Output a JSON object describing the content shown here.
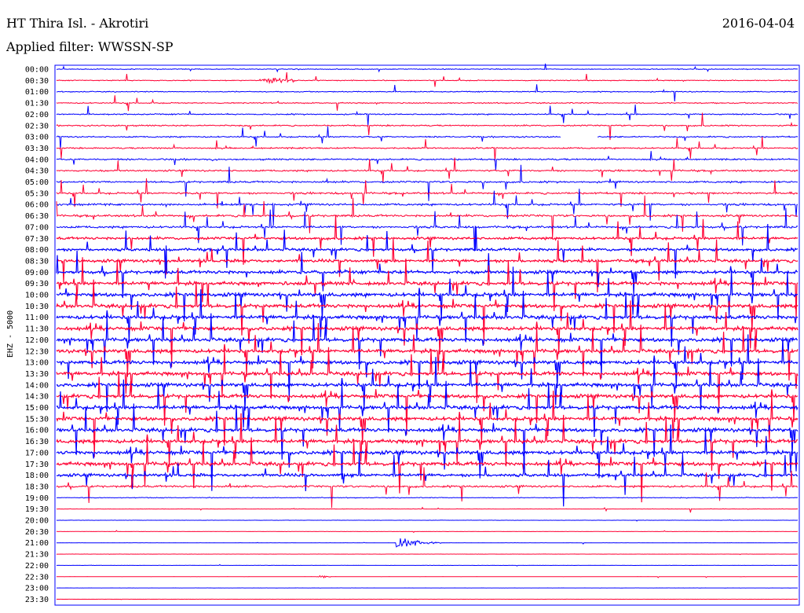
{
  "header": {
    "station": "HT Thira Isl. - Akrotiri",
    "date": "2016-04-04",
    "filter": "Applied filter: WWSSN-SP"
  },
  "colors": {
    "line_a": "#0000ff",
    "line_b": "#ff0033",
    "frame": "#0000ff"
  },
  "chart_data": {
    "type": "line",
    "subtype": "helicorder",
    "ylabel": "EHZ - 5000",
    "xlabel": "",
    "grid": false,
    "row_interval_minutes": 30,
    "rows": [
      {
        "time": "00:00",
        "color": "blue",
        "activity": 0.35
      },
      {
        "time": "00:30",
        "color": "red",
        "activity": 0.4,
        "event": "small local event"
      },
      {
        "time": "01:00",
        "color": "blue",
        "activity": 0.45
      },
      {
        "time": "01:30",
        "color": "red",
        "activity": 0.5
      },
      {
        "time": "02:00",
        "color": "blue",
        "activity": 0.55
      },
      {
        "time": "02:30",
        "color": "red",
        "activity": 0.6
      },
      {
        "time": "03:00",
        "color": "blue",
        "activity": 0.6,
        "gap": true
      },
      {
        "time": "03:30",
        "color": "red",
        "activity": 0.65
      },
      {
        "time": "04:00",
        "color": "blue",
        "activity": 0.7
      },
      {
        "time": "04:30",
        "color": "red",
        "activity": 0.75
      },
      {
        "time": "05:00",
        "color": "blue",
        "activity": 0.8
      },
      {
        "time": "05:30",
        "color": "red",
        "activity": 0.85
      },
      {
        "time": "06:00",
        "color": "blue",
        "activity": 0.9
      },
      {
        "time": "06:30",
        "color": "red",
        "activity": 0.95
      },
      {
        "time": "07:00",
        "color": "blue",
        "activity": 1.0
      },
      {
        "time": "07:30",
        "color": "red",
        "activity": 1.1
      },
      {
        "time": "08:00",
        "color": "blue",
        "activity": 1.2
      },
      {
        "time": "08:30",
        "color": "red",
        "activity": 1.3
      },
      {
        "time": "09:00",
        "color": "blue",
        "activity": 1.4
      },
      {
        "time": "09:30",
        "color": "red",
        "activity": 1.5
      },
      {
        "time": "10:00",
        "color": "blue",
        "activity": 1.6
      },
      {
        "time": "10:30",
        "color": "red",
        "activity": 1.6
      },
      {
        "time": "11:00",
        "color": "blue",
        "activity": 1.6
      },
      {
        "time": "11:30",
        "color": "red",
        "activity": 1.6
      },
      {
        "time": "12:00",
        "color": "blue",
        "activity": 1.6
      },
      {
        "time": "12:30",
        "color": "red",
        "activity": 1.6
      },
      {
        "time": "13:00",
        "color": "blue",
        "activity": 1.6
      },
      {
        "time": "13:30",
        "color": "red",
        "activity": 1.6
      },
      {
        "time": "14:00",
        "color": "blue",
        "activity": 1.6
      },
      {
        "time": "14:30",
        "color": "red",
        "activity": 1.6
      },
      {
        "time": "15:00",
        "color": "blue",
        "activity": 1.6
      },
      {
        "time": "15:30",
        "color": "red",
        "activity": 1.6
      },
      {
        "time": "16:00",
        "color": "blue",
        "activity": 1.6
      },
      {
        "time": "16:30",
        "color": "red",
        "activity": 1.6
      },
      {
        "time": "17:00",
        "color": "blue",
        "activity": 1.6
      },
      {
        "time": "17:30",
        "color": "red",
        "activity": 1.6
      },
      {
        "time": "18:00",
        "color": "blue",
        "activity": 1.3
      },
      {
        "time": "18:30",
        "color": "red",
        "activity": 0.9
      },
      {
        "time": "19:00",
        "color": "blue",
        "activity": 0.35
      },
      {
        "time": "19:30",
        "color": "red",
        "activity": 0.15
      },
      {
        "time": "20:00",
        "color": "blue",
        "activity": 0.12
      },
      {
        "time": "20:30",
        "color": "red",
        "activity": 0.1
      },
      {
        "time": "21:00",
        "color": "blue",
        "activity": 0.1,
        "event": "local earthquake"
      },
      {
        "time": "21:30",
        "color": "red",
        "activity": 0.08
      },
      {
        "time": "22:00",
        "color": "blue",
        "activity": 0.08
      },
      {
        "time": "22:30",
        "color": "red",
        "activity": 0.08,
        "event": "small event"
      },
      {
        "time": "23:00",
        "color": "blue",
        "activity": 0.06
      },
      {
        "time": "23:30",
        "color": "red",
        "activity": 0.06
      }
    ]
  }
}
